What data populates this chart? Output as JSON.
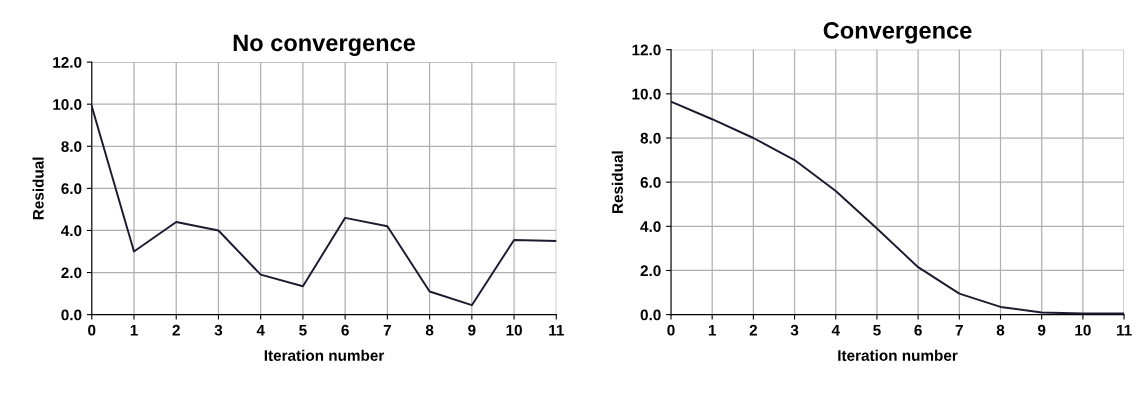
{
  "chart_data": [
    {
      "type": "line",
      "title": "No convergence",
      "xlabel": "Iteration number",
      "ylabel": "Residual",
      "x": [
        0,
        1,
        2,
        3,
        4,
        5,
        6,
        7,
        8,
        9,
        10,
        11
      ],
      "series": [
        {
          "color": "#1f1a30",
          "values": [
            9.9,
            3.0,
            4.4,
            4.0,
            1.9,
            1.35,
            4.6,
            4.2,
            1.1,
            0.45,
            3.55,
            3.5
          ]
        }
      ],
      "xlim": [
        0,
        11
      ],
      "xticks": [
        0,
        1,
        2,
        3,
        4,
        5,
        6,
        7,
        8,
        9,
        10,
        11
      ],
      "ylim": [
        0,
        12
      ],
      "yticks": [
        {
          "value": 0,
          "label": "0.0"
        },
        {
          "value": 2,
          "label": "2.0"
        },
        {
          "value": 4,
          "label": "4.0"
        },
        {
          "value": 6,
          "label": "6.0"
        },
        {
          "value": 8,
          "label": "8.0"
        },
        {
          "value": 10,
          "label": "10.0"
        },
        {
          "value": 12,
          "label": "12.0"
        }
      ],
      "grid": true,
      "marker": "none",
      "line_style": "solid"
    },
    {
      "type": "line",
      "title": "Convergence",
      "xlabel": "Iteration number",
      "ylabel": "Residual",
      "x": [
        0,
        1,
        2,
        3,
        4,
        5,
        6,
        7,
        8,
        9,
        10,
        11
      ],
      "series": [
        {
          "color": "#1f1a30",
          "values": [
            9.65,
            8.85,
            8.0,
            7.0,
            5.6,
            3.9,
            2.15,
            0.95,
            0.35,
            0.1,
            0.05,
            0.05
          ]
        }
      ],
      "xlim": [
        0,
        11
      ],
      "xticks": [
        0,
        1,
        2,
        3,
        4,
        5,
        6,
        7,
        8,
        9,
        10,
        11
      ],
      "ylim": [
        0,
        12
      ],
      "yticks": [
        {
          "value": 0,
          "label": "0.0"
        },
        {
          "value": 2,
          "label": "2.0"
        },
        {
          "value": 4,
          "label": "4.0"
        },
        {
          "value": 6,
          "label": "6.0"
        },
        {
          "value": 8,
          "label": "8.0"
        },
        {
          "value": 10,
          "label": "10.0"
        },
        {
          "value": 12,
          "label": "12.0"
        }
      ],
      "grid": true,
      "marker": "none",
      "line_style": "solid"
    }
  ]
}
